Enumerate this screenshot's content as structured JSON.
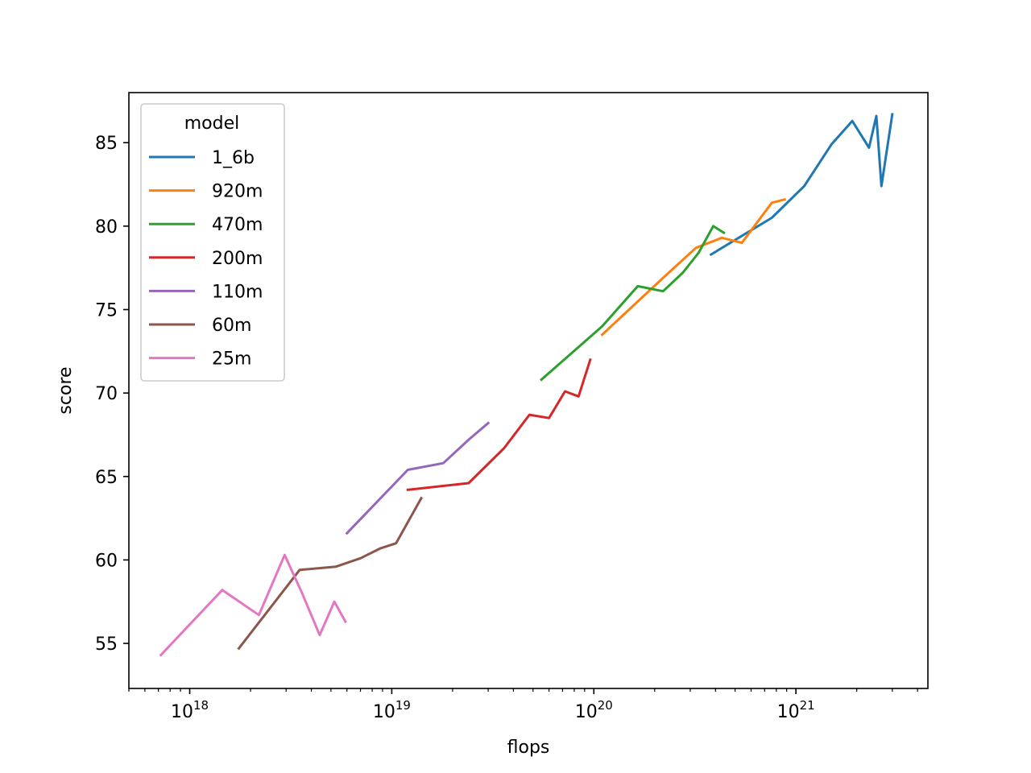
{
  "chart_data": {
    "type": "line",
    "title": "",
    "xlabel": "flops",
    "ylabel": "score",
    "xscale": "log",
    "xlim": [
      5e+17,
      4.5e+21
    ],
    "ylim": [
      52.3,
      88.0
    ],
    "x_major_ticks": [
      1e+18,
      1e+19,
      1e+20,
      1e+21
    ],
    "x_tick_labels": [
      {
        "base": "10",
        "exp": "18"
      },
      {
        "base": "10",
        "exp": "19"
      },
      {
        "base": "10",
        "exp": "20"
      },
      {
        "base": "10",
        "exp": "21"
      }
    ],
    "y_ticks": [
      55,
      60,
      65,
      70,
      75,
      80,
      85
    ],
    "y_tick_labels": [
      "55",
      "60",
      "65",
      "70",
      "75",
      "80",
      "85"
    ],
    "grid": false,
    "legend": {
      "title": "model",
      "position": "top-left"
    },
    "series": [
      {
        "name": "1_6b",
        "color": "#1f77b4",
        "points": [
          [
            3.8e+20,
            78.3
          ],
          [
            7.6e+20,
            80.5
          ],
          [
            1.1e+21,
            82.4
          ],
          [
            1.5e+21,
            84.9
          ],
          [
            1.9e+21,
            86.3
          ],
          [
            2.3e+21,
            84.7
          ],
          [
            2.5e+21,
            86.6
          ],
          [
            2.65e+21,
            82.4
          ],
          [
            3e+21,
            86.7
          ]
        ]
      },
      {
        "name": "920m",
        "color": "#ff7f0e",
        "points": [
          [
            1.1e+20,
            73.5
          ],
          [
            2.2e+20,
            76.9
          ],
          [
            3.2e+20,
            78.7
          ],
          [
            4.3e+20,
            79.3
          ],
          [
            5.4e+20,
            79.0
          ],
          [
            7.6e+20,
            81.4
          ],
          [
            8.8e+20,
            81.6
          ]
        ]
      },
      {
        "name": "470m",
        "color": "#2ca02c",
        "points": [
          [
            5.5e+19,
            70.8
          ],
          [
            1.1e+20,
            74.0
          ],
          [
            1.65e+20,
            76.4
          ],
          [
            2.2e+20,
            76.1
          ],
          [
            2.75e+20,
            77.2
          ],
          [
            3.3e+20,
            78.4
          ],
          [
            3.9e+20,
            80.0
          ],
          [
            4.4e+20,
            79.6
          ]
        ]
      },
      {
        "name": "200m",
        "color": "#d62728",
        "points": [
          [
            1.2e+19,
            64.2
          ],
          [
            2.4e+19,
            64.6
          ],
          [
            3.6e+19,
            66.7
          ],
          [
            4.8e+19,
            68.7
          ],
          [
            6e+19,
            68.5
          ],
          [
            7.2e+19,
            70.1
          ],
          [
            8.4e+19,
            69.8
          ],
          [
            9.6e+19,
            72.0
          ]
        ]
      },
      {
        "name": "110m",
        "color": "#9467bd",
        "points": [
          [
            6e+18,
            61.6
          ],
          [
            1.2e+19,
            65.4
          ],
          [
            1.8e+19,
            65.8
          ],
          [
            2.4e+19,
            67.2
          ],
          [
            3e+19,
            68.2
          ]
        ]
      },
      {
        "name": "60m",
        "color": "#8c564b",
        "points": [
          [
            1.75e+18,
            54.7
          ],
          [
            3.5e+18,
            59.4
          ],
          [
            5.3e+18,
            59.6
          ],
          [
            7e+18,
            60.1
          ],
          [
            8.8e+18,
            60.7
          ],
          [
            1.05e+19,
            61.0
          ],
          [
            1.4e+19,
            63.7
          ]
        ]
      },
      {
        "name": "25m",
        "color": "#e377c2",
        "points": [
          [
            7.2e+17,
            54.3
          ],
          [
            1.45e+18,
            58.2
          ],
          [
            2.2e+18,
            56.7
          ],
          [
            2.95e+18,
            60.3
          ],
          [
            3.6e+18,
            58.0
          ],
          [
            4.4e+18,
            55.5
          ],
          [
            5.2e+18,
            57.5
          ],
          [
            5.9e+18,
            56.3
          ]
        ]
      }
    ]
  }
}
